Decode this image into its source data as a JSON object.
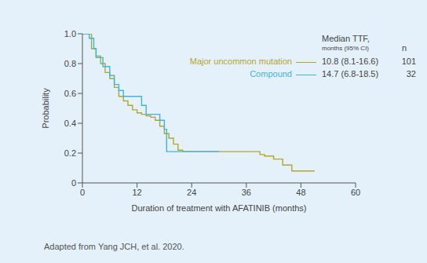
{
  "chart_data": {
    "type": "line",
    "x_label": "Duration of treatment with AFATINIB (months)",
    "y_label": "Probability",
    "xlim": [
      0,
      60
    ],
    "xticks": [
      0,
      12,
      24,
      36,
      48,
      60
    ],
    "ylim": [
      0,
      1
    ],
    "yticks": [
      0,
      0.2,
      0.4,
      0.6,
      0.8,
      {
        "value": 1,
        "label": "1.0"
      }
    ],
    "grid": false,
    "legend": "upper right",
    "legend_title": [
      "Median TTF,",
      "months (95% CI)"
    ],
    "legend_n_header": "n",
    "source": "Adapted from Yang JCH, et al. 2020.",
    "series": [
      {
        "name": "Major uncommon mutation",
        "color": "#b3a630",
        "line_style": "solid",
        "marker": "none",
        "median_label": "10.8 (8.1-16.6)",
        "n": 101,
        "x": [
          0,
          1,
          2,
          3,
          4,
          5,
          6,
          7,
          8,
          9,
          10,
          11,
          12,
          13,
          14,
          15,
          16,
          17,
          18,
          19,
          20,
          21,
          22,
          30,
          38,
          39,
          40,
          42,
          44,
          46,
          48,
          51
        ],
        "values": [
          1.0,
          1.0,
          0.9,
          0.85,
          0.8,
          0.74,
          0.7,
          0.64,
          0.58,
          0.55,
          0.52,
          0.49,
          0.47,
          0.46,
          0.45,
          0.44,
          0.42,
          0.38,
          0.33,
          0.3,
          0.26,
          0.22,
          0.21,
          0.21,
          0.21,
          0.19,
          0.18,
          0.16,
          0.12,
          0.08,
          0.08,
          0.08
        ]
      },
      {
        "name": "Compound",
        "color": "#3db6d9",
        "line_style": "solid",
        "marker": "none",
        "median_label": "14.7 (6.8-18.5)",
        "n": 32,
        "x": [
          0,
          1.5,
          2.5,
          3,
          4.5,
          6,
          7,
          8,
          9,
          12,
          13,
          14,
          16,
          17,
          18,
          18.5,
          30
        ],
        "values": [
          1.0,
          0.97,
          0.9,
          0.84,
          0.78,
          0.72,
          0.66,
          0.62,
          0.58,
          0.58,
          0.52,
          0.46,
          0.46,
          0.42,
          0.36,
          0.21,
          0.21
        ]
      }
    ]
  }
}
